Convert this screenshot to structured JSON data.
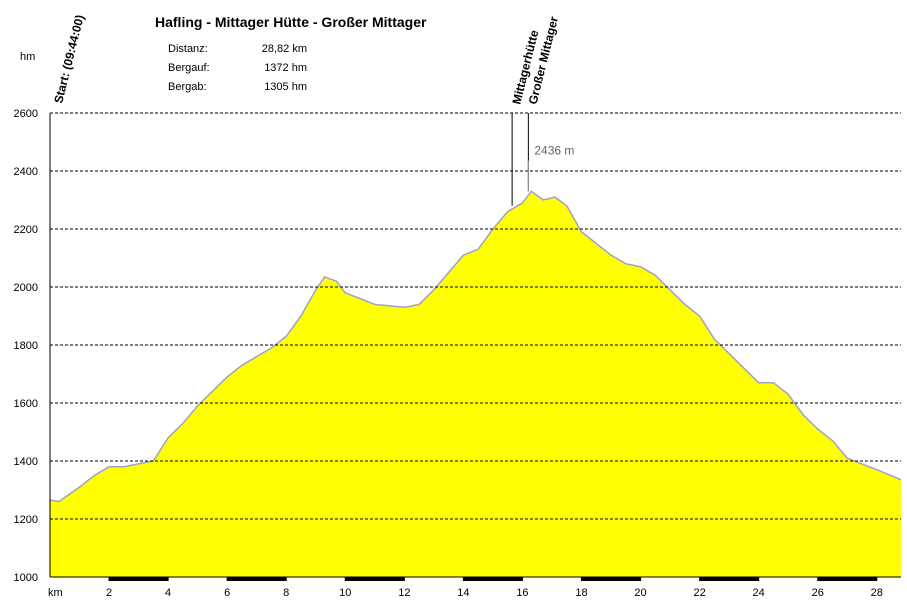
{
  "chart_data": {
    "type": "area",
    "title": "Hafling - Mittager Hütte - Großer Mittager",
    "stats": [
      {
        "label": "Distanz:",
        "value": "28,82 km"
      },
      {
        "label": "Bergauf:",
        "value": "1372 hm"
      },
      {
        "label": "Bergab:",
        "value": "1305 hm"
      }
    ],
    "y_label": "hm",
    "x_label": "km",
    "start_label": "Start: (09:44:00)",
    "color": "#ffff00",
    "line_color": "#a0a0c8",
    "x": [
      0,
      0.3,
      1,
      1.5,
      2,
      2.5,
      3,
      3.5,
      4,
      4.5,
      5,
      5.5,
      6,
      6.5,
      7,
      7.5,
      8,
      8.5,
      9,
      9.3,
      9.7,
      10,
      10.5,
      11,
      11.5,
      12,
      12.5,
      13,
      13.5,
      14,
      14.5,
      15,
      15.5,
      16,
      16.3,
      16.7,
      17.1,
      17.5,
      18,
      18.5,
      19,
      19.5,
      20,
      20.5,
      21,
      21.5,
      22,
      22.5,
      23,
      23.5,
      24,
      24.5,
      25,
      25.5,
      26,
      26.5,
      27,
      27.5,
      28,
      28.82
    ],
    "values": [
      1265,
      1260,
      1310,
      1350,
      1380,
      1380,
      1390,
      1400,
      1480,
      1530,
      1590,
      1640,
      1690,
      1730,
      1760,
      1790,
      1830,
      1900,
      1990,
      2035,
      2020,
      1980,
      1960,
      1940,
      1935,
      1930,
      1940,
      1990,
      2050,
      2110,
      2130,
      2200,
      2260,
      2290,
      2330,
      2300,
      2310,
      2280,
      2190,
      2150,
      2110,
      2080,
      2070,
      2040,
      1990,
      1940,
      1900,
      1820,
      1770,
      1720,
      1670,
      1670,
      1630,
      1560,
      1510,
      1470,
      1410,
      1390,
      1370,
      1335
    ],
    "markers": [
      {
        "label": "Mittagerhütte",
        "x": 15.65,
        "value": 2280
      },
      {
        "label": "Großer Mittager",
        "x": 16.2,
        "value": 2330
      }
    ],
    "peak": {
      "text": "2436 m",
      "x": 16.2,
      "value": 2436
    },
    "xlim": [
      0,
      28.82
    ],
    "ylim": [
      1000,
      2600
    ],
    "xticks": [
      2,
      4,
      6,
      8,
      10,
      12,
      14,
      16,
      18,
      20,
      22,
      24,
      26,
      28
    ],
    "yticks": [
      1000,
      1200,
      1400,
      1600,
      1800,
      2000,
      2200,
      2400,
      2600
    ],
    "grid": true
  }
}
